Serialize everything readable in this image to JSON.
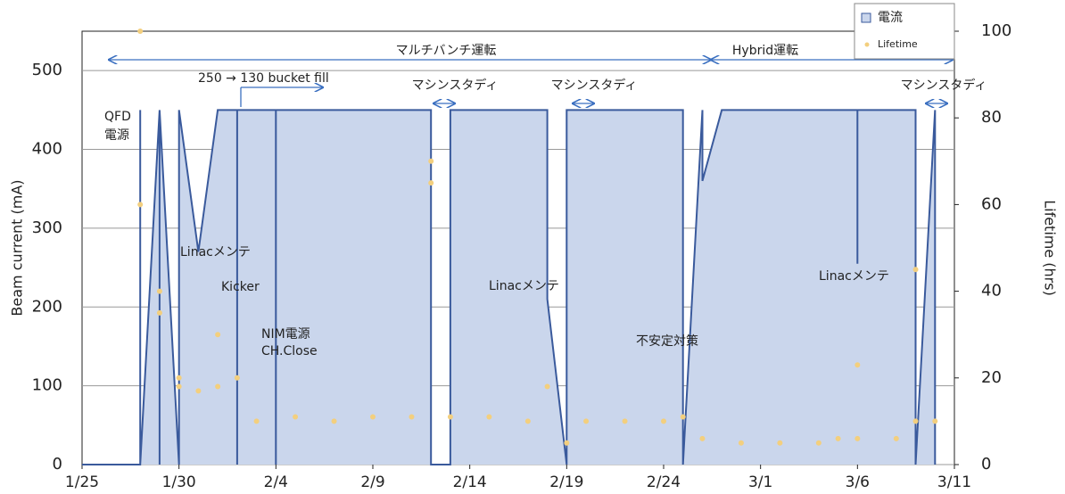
{
  "chart_data": {
    "type": "area",
    "y_label": "Beam current (mA)",
    "y2_label": "Lifetime (hrs)",
    "xlim": [
      "1/25",
      "3/11"
    ],
    "xticks": [
      "1/25",
      "1/30",
      "2/4",
      "2/9",
      "2/14",
      "2/19",
      "2/24",
      "3/1",
      "3/6",
      "3/11"
    ],
    "ylim": [
      0,
      550
    ],
    "yticks": [
      0,
      100,
      200,
      300,
      400,
      500
    ],
    "y2lim": [
      0,
      100
    ],
    "y2ticks": [
      0,
      20,
      40,
      60,
      80,
      100
    ],
    "grid": true,
    "legend": "top-right",
    "series": [
      {
        "name": "電流",
        "color": "#3a5a9c",
        "fill": "#cad6ec",
        "x": [
          "1/25",
          "1/28",
          "1/28",
          "1/28",
          "1/29",
          "1/29",
          "1/29",
          "1/30",
          "1/30",
          "1/31",
          "2/1",
          "2/2",
          "2/2",
          "2/2",
          "2/4",
          "2/4",
          "2/4",
          "2/12",
          "2/12",
          "2/13",
          "2/13",
          "2/18",
          "2/18",
          "2/19",
          "2/19",
          "2/25",
          "2/25",
          "2/26",
          "2/26",
          "2/27",
          "3/6",
          "3/6",
          "3/6",
          "3/9",
          "3/9",
          "3/10",
          "3/10"
        ],
        "values": [
          0,
          0,
          450,
          0,
          450,
          0,
          450,
          0,
          450,
          270,
          450,
          450,
          0,
          450,
          450,
          0,
          450,
          450,
          0,
          0,
          450,
          450,
          210,
          0,
          450,
          450,
          0,
          450,
          360,
          450,
          450,
          255,
          450,
          450,
          0,
          450,
          0
        ]
      },
      {
        "name": "Lifetime",
        "color": "#f3cf7e",
        "axis": "y2",
        "x": [
          "1/28",
          "1/28",
          "1/29",
          "1/29",
          "1/30",
          "1/30",
          "1/31",
          "2/1",
          "2/1",
          "2/2",
          "2/3",
          "2/5",
          "2/7",
          "2/9",
          "2/11",
          "2/12",
          "2/12",
          "2/13",
          "2/15",
          "2/17",
          "2/18",
          "2/19",
          "2/20",
          "2/22",
          "2/24",
          "2/25",
          "2/26",
          "2/28",
          "3/2",
          "3/4",
          "3/5",
          "3/6",
          "3/6",
          "3/8",
          "3/9",
          "3/9",
          "3/10"
        ],
        "values": [
          60,
          100,
          40,
          35,
          18,
          20,
          17,
          30,
          18,
          20,
          10,
          11,
          10,
          11,
          11,
          70,
          65,
          11,
          11,
          10,
          18,
          5,
          10,
          10,
          10,
          11,
          6,
          5,
          5,
          5,
          6,
          23,
          6,
          6,
          45,
          10,
          10
        ]
      }
    ],
    "annotations": [
      {
        "text": "マルチバンチ運転",
        "color": "#222222"
      },
      {
        "text": "Hybrid運転",
        "color": "#222222"
      },
      {
        "text": "250 → 130 bucket fill",
        "color": "#222222"
      },
      {
        "text": "マシンスタディ",
        "color": "#222222"
      },
      {
        "text": "マシンスタディ",
        "color": "#222222"
      },
      {
        "text": "マシンスタディ",
        "color": "#222222"
      },
      {
        "text": "QFD",
        "color": "#e02020"
      },
      {
        "text": "電源",
        "color": "#e02020"
      },
      {
        "text": "Linacメンテ",
        "color": "#222222"
      },
      {
        "text": "Kicker",
        "color": "#e02020"
      },
      {
        "text": "NIM電源",
        "color": "#e02020"
      },
      {
        "text": "CH.Close",
        "color": "#e02020"
      },
      {
        "text": "Linacメンテ",
        "color": "#222222"
      },
      {
        "text": "不安定対策",
        "color": "#e02020"
      },
      {
        "text": "Linacメンテ",
        "color": "#222222"
      }
    ]
  }
}
